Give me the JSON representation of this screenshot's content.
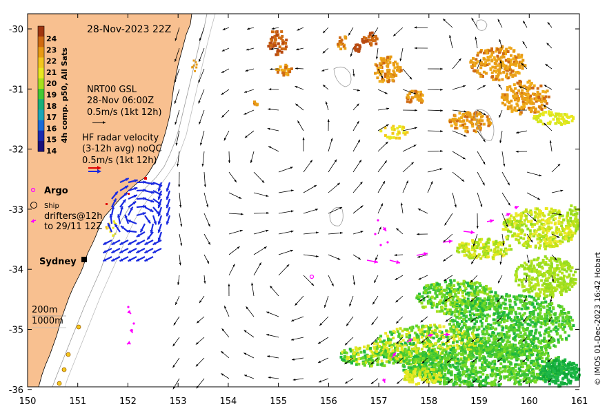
{
  "title": "28-Nov-2023 22Z",
  "colorbar": {
    "label": "4h comp. p50, All Sats",
    "ticks": [
      "24",
      "23",
      "22",
      "21",
      "20",
      "19",
      "18",
      "17",
      "16",
      "15",
      "14"
    ],
    "colors": [
      "#a03510",
      "#cf6a12",
      "#e89a14",
      "#f3c61c",
      "#e9e820",
      "#a6e01c",
      "#42c934",
      "#18b07a",
      "#1aa6b8",
      "#1a6ad8",
      "#1a2ab0",
      "#1a107a"
    ]
  },
  "legend": {
    "gsl_line1": "NRT00 GSL",
    "gsl_line2": "28-Nov 06:00Z",
    "gsl_line3": "0.5m/s (1kt 12h)",
    "hf_line1": "HF radar velocity",
    "hf_line2": "(3-12h avg) noQC",
    "hf_line3": "0.5m/s (1kt 12h)",
    "argo": "Argo",
    "ship": "Ship",
    "drifters_line1": "drifters@12h",
    "drifters_line2": "to 29/11 12Z",
    "depth1": "200m",
    "depth2": "1000m"
  },
  "city": "Sydney",
  "credit": "© IMOS 01-Dec-2023 16:42 Hobart",
  "axes": {
    "x_ticks": [
      "150",
      "151",
      "152",
      "153",
      "154",
      "155",
      "156",
      "157",
      "158",
      "159",
      "160",
      "161"
    ],
    "y_ticks": [
      "-30",
      "-31",
      "-32",
      "-33",
      "-34",
      "-35",
      "-36"
    ],
    "lon_range": [
      150,
      161
    ],
    "lat_range": [
      -36,
      -29.8
    ]
  },
  "colors": {
    "land": "#f8c090",
    "hf_arrow": "#1a2ae0",
    "drifter": "#ff00ff",
    "argo": "#ff00ff"
  }
}
